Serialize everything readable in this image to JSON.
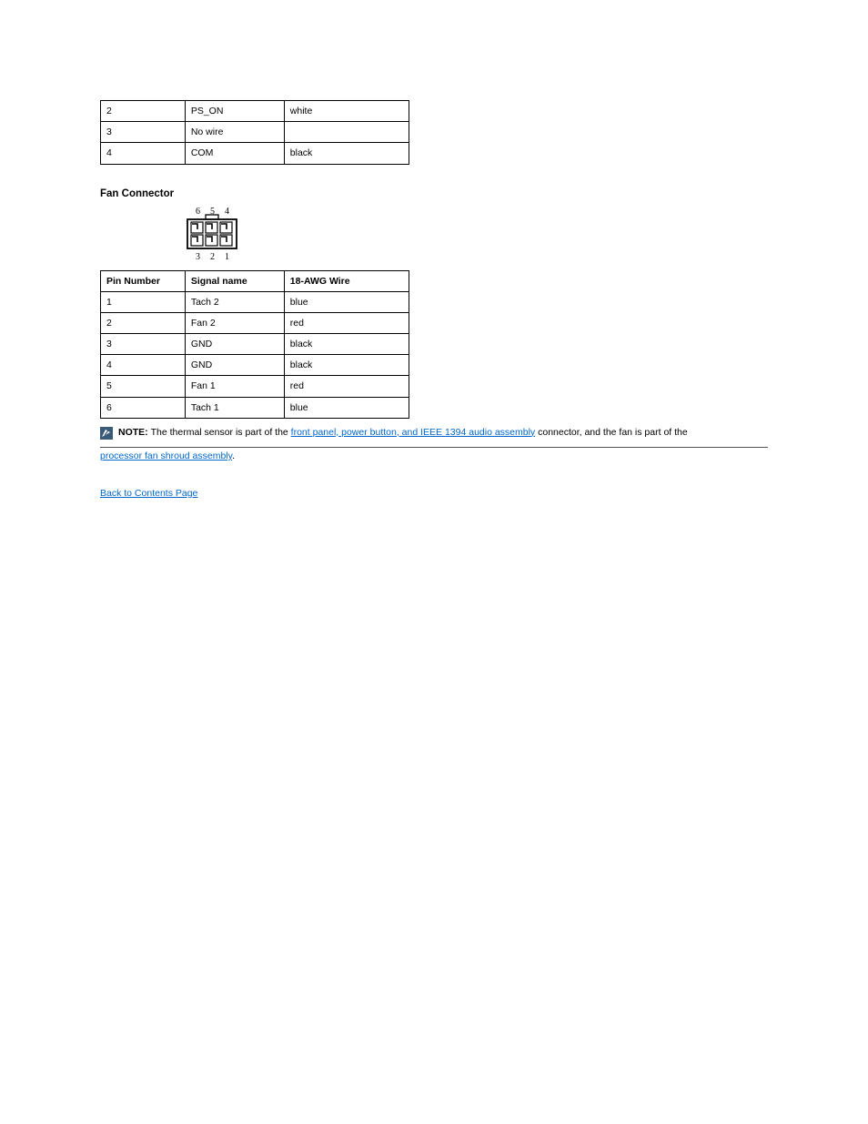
{
  "table1": {
    "rows": [
      [
        "2",
        "PS_ON",
        "white"
      ],
      [
        "3",
        "No wire",
        ""
      ],
      [
        "4",
        "COM",
        "black"
      ]
    ]
  },
  "subheading": "Fan Connector",
  "connector": {
    "top_labels": [
      "6",
      "5",
      "4"
    ],
    "bottom_labels": [
      "3",
      "2",
      "1"
    ],
    "stroke": "#000000",
    "fill": "#ffffff"
  },
  "table2": {
    "columns": [
      "Pin Number",
      "Signal name",
      "18-AWG Wire"
    ],
    "rows": [
      [
        "1",
        "Tach 2",
        "blue"
      ],
      [
        "2",
        "Fan 2",
        "red"
      ],
      [
        "3",
        "GND",
        "black"
      ],
      [
        "4",
        "GND",
        "black"
      ],
      [
        "5",
        "Fan 1",
        "red"
      ],
      [
        "6",
        "Tach 1",
        "blue"
      ]
    ]
  },
  "note": {
    "bold": "NOTE: ",
    "prefix": "The thermal sensor is part of the ",
    "link1_text": "front panel, power button, and IEEE 1394 audio assembly",
    "suffix": " connector, and the fan is part of the ",
    "link2_text": "processor fan shroud assembly",
    "suffix2": "."
  },
  "back_link": "Back to Contents Page",
  "colors": {
    "link": "#0066cc",
    "rule": "#555555",
    "text": "#000000",
    "bg": "#ffffff"
  }
}
